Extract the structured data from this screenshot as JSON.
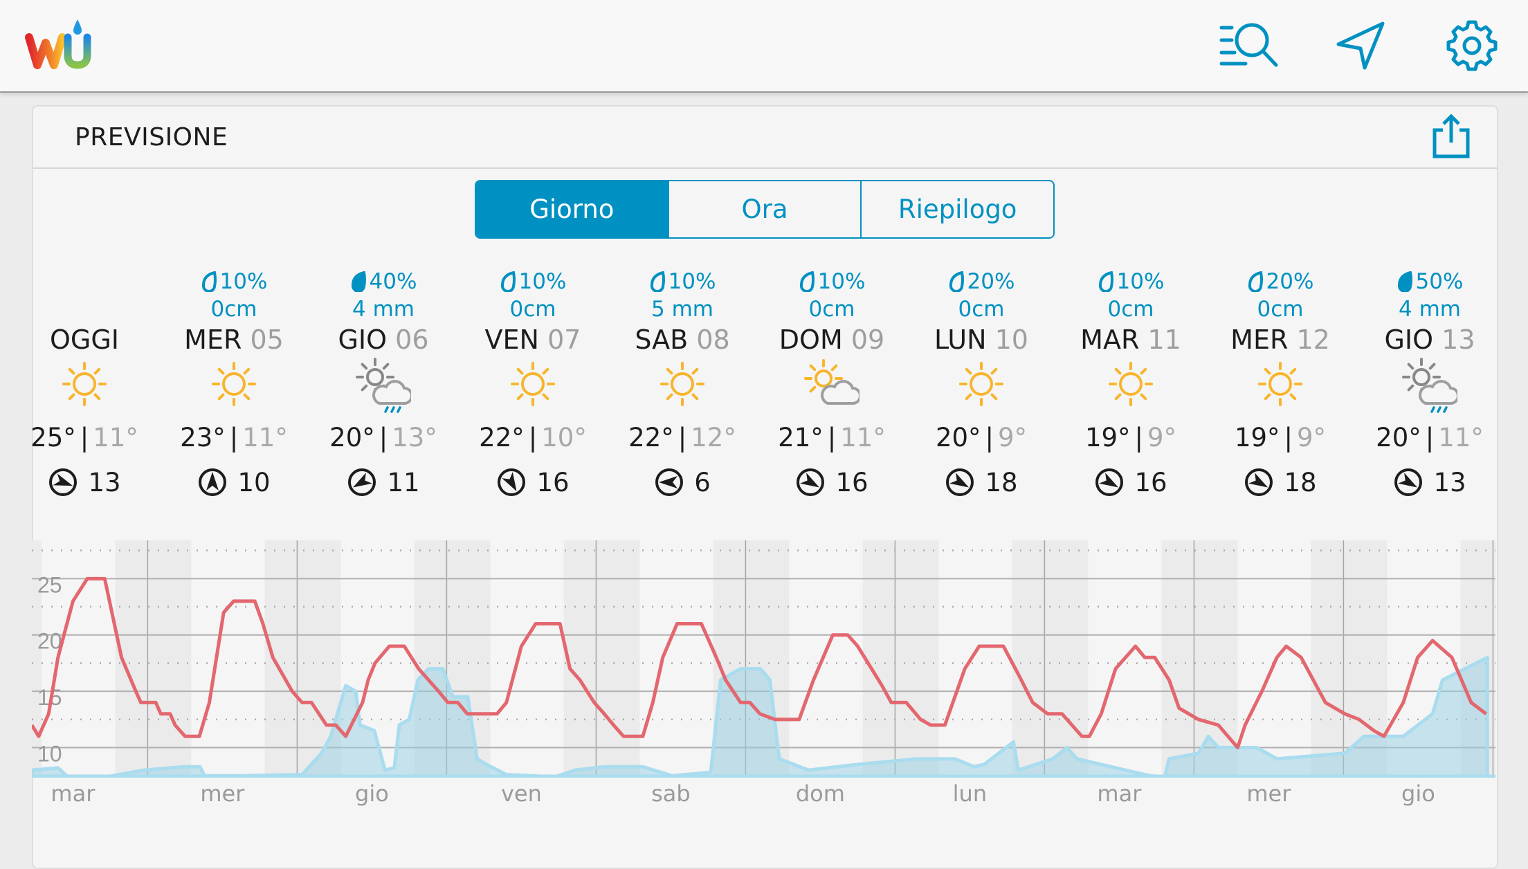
{
  "header": {
    "logo_text": "wu",
    "icons": [
      "search-list-icon",
      "navigation-arrow-icon",
      "gear-icon"
    ]
  },
  "forecast": {
    "title": "PREVISIONE",
    "share_icon": "share-icon",
    "tabs": [
      {
        "label": "Giorno",
        "active": true
      },
      {
        "label": "Ora",
        "active": false
      },
      {
        "label": "Riepilogo",
        "active": false
      }
    ],
    "days": [
      {
        "name": "OGGI",
        "num": "",
        "pop": "",
        "amount": "",
        "icon": "sunny",
        "hi": "25°",
        "lo": "11°",
        "wind": "13",
        "wind_dir_deg": 110
      },
      {
        "name": "MER",
        "num": "05",
        "pop": "10%",
        "amount": "0cm",
        "drop": "light",
        "icon": "sunny",
        "hi": "23°",
        "lo": "11°",
        "wind": "10",
        "wind_dir_deg": 0
      },
      {
        "name": "GIO",
        "num": "06",
        "pop": "40%",
        "amount": "4 mm",
        "drop": "full",
        "icon": "rain-partly",
        "hi": "20°",
        "lo": "13°",
        "wind": "11",
        "wind_dir_deg": 240
      },
      {
        "name": "VEN",
        "num": "07",
        "pop": "10%",
        "amount": "0cm",
        "drop": "light",
        "icon": "sunny",
        "hi": "22°",
        "lo": "10°",
        "wind": "16",
        "wind_dir_deg": 150
      },
      {
        "name": "SAB",
        "num": "08",
        "pop": "10%",
        "amount": "5 mm",
        "drop": "light",
        "icon": "sunny",
        "hi": "22°",
        "lo": "12°",
        "wind": "6",
        "wind_dir_deg": 270
      },
      {
        "name": "DOM",
        "num": "09",
        "pop": "10%",
        "amount": "0cm",
        "drop": "light",
        "icon": "partly-cloudy",
        "hi": "21°",
        "lo": "11°",
        "wind": "16",
        "wind_dir_deg": 120
      },
      {
        "name": "LUN",
        "num": "10",
        "pop": "20%",
        "amount": "0cm",
        "drop": "light",
        "icon": "sunny",
        "hi": "20°",
        "lo": "9°",
        "wind": "18",
        "wind_dir_deg": 120
      },
      {
        "name": "MAR",
        "num": "11",
        "pop": "10%",
        "amount": "0cm",
        "drop": "light",
        "icon": "sunny",
        "hi": "19°",
        "lo": "9°",
        "wind": "16",
        "wind_dir_deg": 120
      },
      {
        "name": "MER",
        "num": "12",
        "pop": "20%",
        "amount": "0cm",
        "drop": "light",
        "icon": "sunny",
        "hi": "19°",
        "lo": "9°",
        "wind": "18",
        "wind_dir_deg": 120
      },
      {
        "name": "GIO",
        "num": "13",
        "pop": "50%",
        "amount": "4 mm",
        "drop": "full",
        "icon": "rain-partly",
        "hi": "20°",
        "lo": "11°",
        "wind": "13",
        "wind_dir_deg": 120
      }
    ]
  },
  "colors": {
    "accent": "#0091c2",
    "temp_line": "#e3676e",
    "precip": "#a9dcee",
    "sun": "#f7b52c"
  },
  "chart_data": {
    "type": "line",
    "x_unit": "hours",
    "xlim": [
      0,
      235
    ],
    "ylim": [
      7.33,
      28.4
    ],
    "yticks": [
      10,
      15,
      20,
      25
    ],
    "ytick_labels": [
      "10",
      "15",
      "20",
      "25"
    ],
    "minor_gridlines": [
      12.5,
      17.5,
      22.5,
      27.5
    ],
    "day_boundaries_first_hour": 18.6,
    "hours_per_day": 24,
    "night_band_around_boundary": [
      -5.2,
      7
    ],
    "xlabels": [
      "mar",
      "mer",
      "gio",
      "ven",
      "sab",
      "dom",
      "lun",
      "mar",
      "mer",
      "gio"
    ],
    "xlabel_first_hour": 6.6,
    "series": [
      {
        "name": "temperature",
        "points": [
          [
            0,
            12
          ],
          [
            1.1,
            11
          ],
          [
            2.7,
            13
          ],
          [
            4.2,
            18
          ],
          [
            6.6,
            23
          ],
          [
            8.9,
            25
          ],
          [
            11.7,
            25
          ],
          [
            14.4,
            18
          ],
          [
            16.7,
            15
          ],
          [
            17.5,
            14
          ],
          [
            19.9,
            14
          ],
          [
            20.7,
            13
          ],
          [
            22.2,
            13
          ],
          [
            23,
            12
          ],
          [
            24.6,
            11
          ],
          [
            26.9,
            11
          ],
          [
            28.5,
            14
          ],
          [
            30.8,
            22
          ],
          [
            32.4,
            23
          ],
          [
            35.8,
            23
          ],
          [
            37.1,
            21
          ],
          [
            38.7,
            18
          ],
          [
            41.8,
            15
          ],
          [
            43.4,
            14
          ],
          [
            44.9,
            14
          ],
          [
            47.3,
            12
          ],
          [
            48.8,
            12
          ],
          [
            50.4,
            11
          ],
          [
            53.1,
            14
          ],
          [
            54,
            16
          ],
          [
            55.1,
            17.5
          ],
          [
            57.4,
            19
          ],
          [
            59.8,
            19
          ],
          [
            62.1,
            17
          ],
          [
            63.7,
            16
          ],
          [
            65.3,
            15
          ],
          [
            66.8,
            14
          ],
          [
            68.4,
            14
          ],
          [
            69.9,
            13
          ],
          [
            74.7,
            13
          ],
          [
            76.2,
            14
          ],
          [
            78.6,
            19
          ],
          [
            80.9,
            21
          ],
          [
            84.8,
            21
          ],
          [
            86.4,
            17
          ],
          [
            88,
            16
          ],
          [
            90.3,
            14
          ],
          [
            91.9,
            13
          ],
          [
            93.4,
            12
          ],
          [
            95,
            11
          ],
          [
            98.1,
            11
          ],
          [
            99.7,
            14
          ],
          [
            101.3,
            18
          ],
          [
            103.6,
            21
          ],
          [
            107.5,
            21
          ],
          [
            109.9,
            18
          ],
          [
            111.4,
            16
          ],
          [
            113.8,
            14
          ],
          [
            115.3,
            14
          ],
          [
            116.9,
            13
          ],
          [
            119.3,
            12.5
          ],
          [
            123.2,
            12.5
          ],
          [
            125.5,
            16
          ],
          [
            128.6,
            20
          ],
          [
            131,
            20
          ],
          [
            132.6,
            19
          ],
          [
            136.5,
            15.5
          ],
          [
            138,
            14
          ],
          [
            140.4,
            14
          ],
          [
            142.7,
            12.5
          ],
          [
            144.3,
            12
          ],
          [
            146.6,
            12
          ],
          [
            149.8,
            17
          ],
          [
            152.1,
            19
          ],
          [
            156,
            19
          ],
          [
            158.4,
            16.5
          ],
          [
            160.7,
            14
          ],
          [
            163.1,
            13
          ],
          [
            165.4,
            13
          ],
          [
            167,
            12
          ],
          [
            168.6,
            11
          ],
          [
            169.8,
            11
          ],
          [
            171.7,
            13
          ],
          [
            174,
            17
          ],
          [
            177.2,
            19
          ],
          [
            178.7,
            18
          ],
          [
            180.3,
            18
          ],
          [
            182.6,
            16
          ],
          [
            184.2,
            13.5
          ],
          [
            187.3,
            12.5
          ],
          [
            190.5,
            12
          ],
          [
            193.6,
            10
          ],
          [
            194.8,
            12
          ],
          [
            197.5,
            15
          ],
          [
            199.9,
            18
          ],
          [
            201.4,
            19
          ],
          [
            203.8,
            18
          ],
          [
            207.7,
            14
          ],
          [
            210.8,
            13
          ],
          [
            213.1,
            12.5
          ],
          [
            215.5,
            11.5
          ],
          [
            217.1,
            11
          ],
          [
            220.2,
            14
          ],
          [
            222.5,
            18
          ],
          [
            224.9,
            19.5
          ],
          [
            228,
            18
          ],
          [
            231.1,
            14
          ],
          [
            233.5,
            13
          ]
        ]
      },
      {
        "name": "precipitation",
        "points": [
          [
            0,
            8
          ],
          [
            4.2,
            8.2
          ],
          [
            5.8,
            7.4
          ],
          [
            12,
            7.4
          ],
          [
            18,
            8
          ],
          [
            24.6,
            8.3
          ],
          [
            27,
            8.3
          ],
          [
            27.7,
            7.5
          ],
          [
            34,
            7.5
          ],
          [
            43.4,
            7.6
          ],
          [
            46.5,
            9.5
          ],
          [
            48,
            11
          ],
          [
            50.4,
            15.5
          ],
          [
            52,
            15
          ],
          [
            52.7,
            12
          ],
          [
            55,
            11.5
          ],
          [
            56.7,
            8
          ],
          [
            58.2,
            8.2
          ],
          [
            59,
            12
          ],
          [
            60.6,
            12.5
          ],
          [
            62,
            16
          ],
          [
            63.7,
            17
          ],
          [
            66,
            17
          ],
          [
            67.6,
            14.5
          ],
          [
            70,
            14.5
          ],
          [
            71.5,
            9
          ],
          [
            73,
            8.5
          ],
          [
            76.2,
            7.6
          ],
          [
            84,
            7.4
          ],
          [
            87.2,
            8
          ],
          [
            91.9,
            8.3
          ],
          [
            98.1,
            8.3
          ],
          [
            102.8,
            7.5
          ],
          [
            109,
            7.8
          ],
          [
            110.6,
            16
          ],
          [
            113.8,
            17
          ],
          [
            117,
            17
          ],
          [
            118.5,
            16
          ],
          [
            120,
            9
          ],
          [
            124.7,
            8
          ],
          [
            132.5,
            8.5
          ],
          [
            142,
            9
          ],
          [
            148.2,
            9
          ],
          [
            151.3,
            8.3
          ],
          [
            152.9,
            8.5
          ],
          [
            157.6,
            10.5
          ],
          [
            158.4,
            8
          ],
          [
            163.9,
            9
          ],
          [
            166.2,
            10
          ],
          [
            167.8,
            9
          ],
          [
            179.5,
            7.5
          ],
          [
            181.9,
            7.4
          ],
          [
            182.6,
            9
          ],
          [
            187.3,
            9.5
          ],
          [
            188.9,
            11
          ],
          [
            190.5,
            10
          ],
          [
            196.7,
            10
          ],
          [
            199.9,
            9
          ],
          [
            210.8,
            9.5
          ],
          [
            213.9,
            11
          ],
          [
            220.2,
            11
          ],
          [
            224.9,
            13
          ],
          [
            226.5,
            16
          ],
          [
            233.7,
            18
          ]
        ]
      }
    ]
  }
}
